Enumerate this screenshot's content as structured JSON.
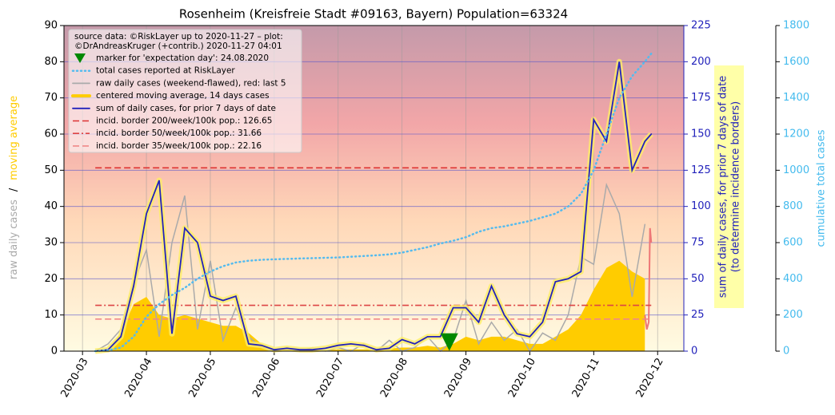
{
  "chart_data": {
    "type": "line",
    "title": "Rosenheim (Kreisfreie Stadt #09163, Bayern) Population=63324",
    "source_note": [
      "source data: ©RiskLayer up to 2020-11-27 – plot:",
      "©DrAndreasKruger (+contrib.) 2020-11-27 04:01"
    ],
    "ylabel": [
      "raw daily cases",
      "/",
      "moving average"
    ],
    "y2label": [
      "sum of daily cases, for prior 7 days of date",
      "(to determine incidence borders)"
    ],
    "y3label": "cumulative total cases",
    "xlim": [
      2.71,
      12.41
    ],
    "xticks": [
      {
        "value": 3,
        "label": "2020-03"
      },
      {
        "value": 4,
        "label": "2020-04"
      },
      {
        "value": 5,
        "label": "2020-05"
      },
      {
        "value": 6,
        "label": "2020-06"
      },
      {
        "value": 7,
        "label": "2020-07"
      },
      {
        "value": 8,
        "label": "2020-08"
      },
      {
        "value": 9,
        "label": "2020-09"
      },
      {
        "value": 10,
        "label": "2020-10"
      },
      {
        "value": 11,
        "label": "2020-11"
      },
      {
        "value": 12,
        "label": "2020-12"
      }
    ],
    "ylim": [
      0,
      90
    ],
    "yticks": [
      0,
      10,
      20,
      30,
      40,
      50,
      60,
      70,
      80,
      90
    ],
    "y2lim": [
      0,
      225
    ],
    "y2ticks": [
      0,
      25,
      50,
      75,
      100,
      125,
      150,
      175,
      200,
      225
    ],
    "y3lim": [
      0,
      1800
    ],
    "y3ticks": [
      0,
      200,
      400,
      600,
      800,
      1000,
      1200,
      1400,
      1600,
      1800
    ],
    "grid": true,
    "x": [
      3.2,
      3.4,
      3.6,
      3.8,
      4.0,
      4.2,
      4.4,
      4.6,
      4.8,
      5.0,
      5.2,
      5.4,
      5.6,
      5.8,
      6.0,
      6.2,
      6.4,
      6.6,
      6.8,
      7.0,
      7.2,
      7.4,
      7.6,
      7.8,
      8.0,
      8.2,
      8.4,
      8.6,
      8.8,
      9.0,
      9.2,
      9.4,
      9.6,
      9.8,
      10.0,
      10.2,
      10.4,
      10.6,
      10.8,
      11.0,
      11.2,
      11.4,
      11.6,
      11.8,
      11.9
    ],
    "marker": {
      "name": "marker for 'expectation day': 24.08.2020",
      "x": 8.74,
      "y": 2.5,
      "color": "#008800"
    },
    "series": [
      {
        "name": "total cases reported at RiskLayer",
        "color": "#55bbee",
        "linestyle": "dotted",
        "axis": "y3",
        "values": [
          0,
          5,
          20,
          80,
          190,
          260,
          310,
          350,
          400,
          440,
          470,
          490,
          500,
          505,
          508,
          510,
          512,
          514,
          516,
          518,
          522,
          526,
          530,
          535,
          545,
          560,
          575,
          595,
          610,
          630,
          660,
          680,
          690,
          705,
          720,
          740,
          760,
          800,
          870,
          1000,
          1200,
          1400,
          1520,
          1600,
          1645
        ]
      },
      {
        "name": "raw daily cases (weekend-flawed), red: last 5",
        "color": "#aaaaaa",
        "linestyle": "solid",
        "values": [
          0,
          2,
          6,
          19,
          28,
          4,
          30,
          43,
          6,
          25,
          3,
          12,
          4,
          1,
          0,
          1,
          0,
          1,
          0,
          1,
          0,
          2,
          0,
          3,
          0,
          1,
          4,
          0,
          3,
          14,
          2,
          8,
          3,
          6,
          0,
          5,
          3,
          10,
          26,
          24,
          46,
          38,
          15,
          35,
          null
        ]
      },
      {
        "name": "centered moving average, 14 days cases",
        "color": "#ffcc00",
        "linestyle": "area",
        "values": [
          0,
          0.5,
          5,
          13,
          15,
          10,
          9,
          10,
          9,
          8,
          7,
          7,
          5,
          2,
          0.5,
          0.5,
          0.3,
          0.3,
          0.3,
          0.5,
          0.5,
          0.5,
          0.5,
          0.7,
          1,
          1,
          1.5,
          1,
          2,
          4,
          3,
          4,
          4,
          3,
          2,
          2,
          4,
          6,
          10,
          17,
          23,
          25,
          22,
          20,
          null
        ]
      },
      {
        "name": "sum of daily cases, for prior 7 days of date",
        "color": "#2222bb",
        "linestyle": "solid",
        "axis": "y2",
        "values": [
          0,
          1,
          10,
          45,
          95,
          118,
          12,
          85,
          75,
          38,
          35,
          38,
          5,
          4,
          1,
          2,
          1,
          1,
          2,
          4,
          5,
          4,
          1,
          2,
          8,
          5,
          10,
          10,
          30,
          30,
          20,
          45,
          25,
          12,
          10,
          20,
          48,
          50,
          55,
          160,
          145,
          200,
          125,
          145,
          150
        ]
      }
    ],
    "last5": {
      "color": "#ee7777",
      "x": [
        11.8,
        11.83,
        11.86,
        11.88,
        11.9
      ],
      "values": [
        10,
        6,
        8,
        34,
        30
      ]
    },
    "borders": [
      {
        "name": "incid. border 200/week/100k pop.: 126.65",
        "value": 126.65,
        "color": "#dd3333",
        "linestyle": "dashed"
      },
      {
        "name": "incid. border 50/week/100k pop.: 31.66",
        "value": 31.66,
        "color": "#dd4444",
        "linestyle": "dashdot"
      },
      {
        "name": "incid. border 35/week/100k pop.: 22.16",
        "value": 22.16,
        "color": "#f08888",
        "linestyle": "dashed"
      }
    ]
  }
}
